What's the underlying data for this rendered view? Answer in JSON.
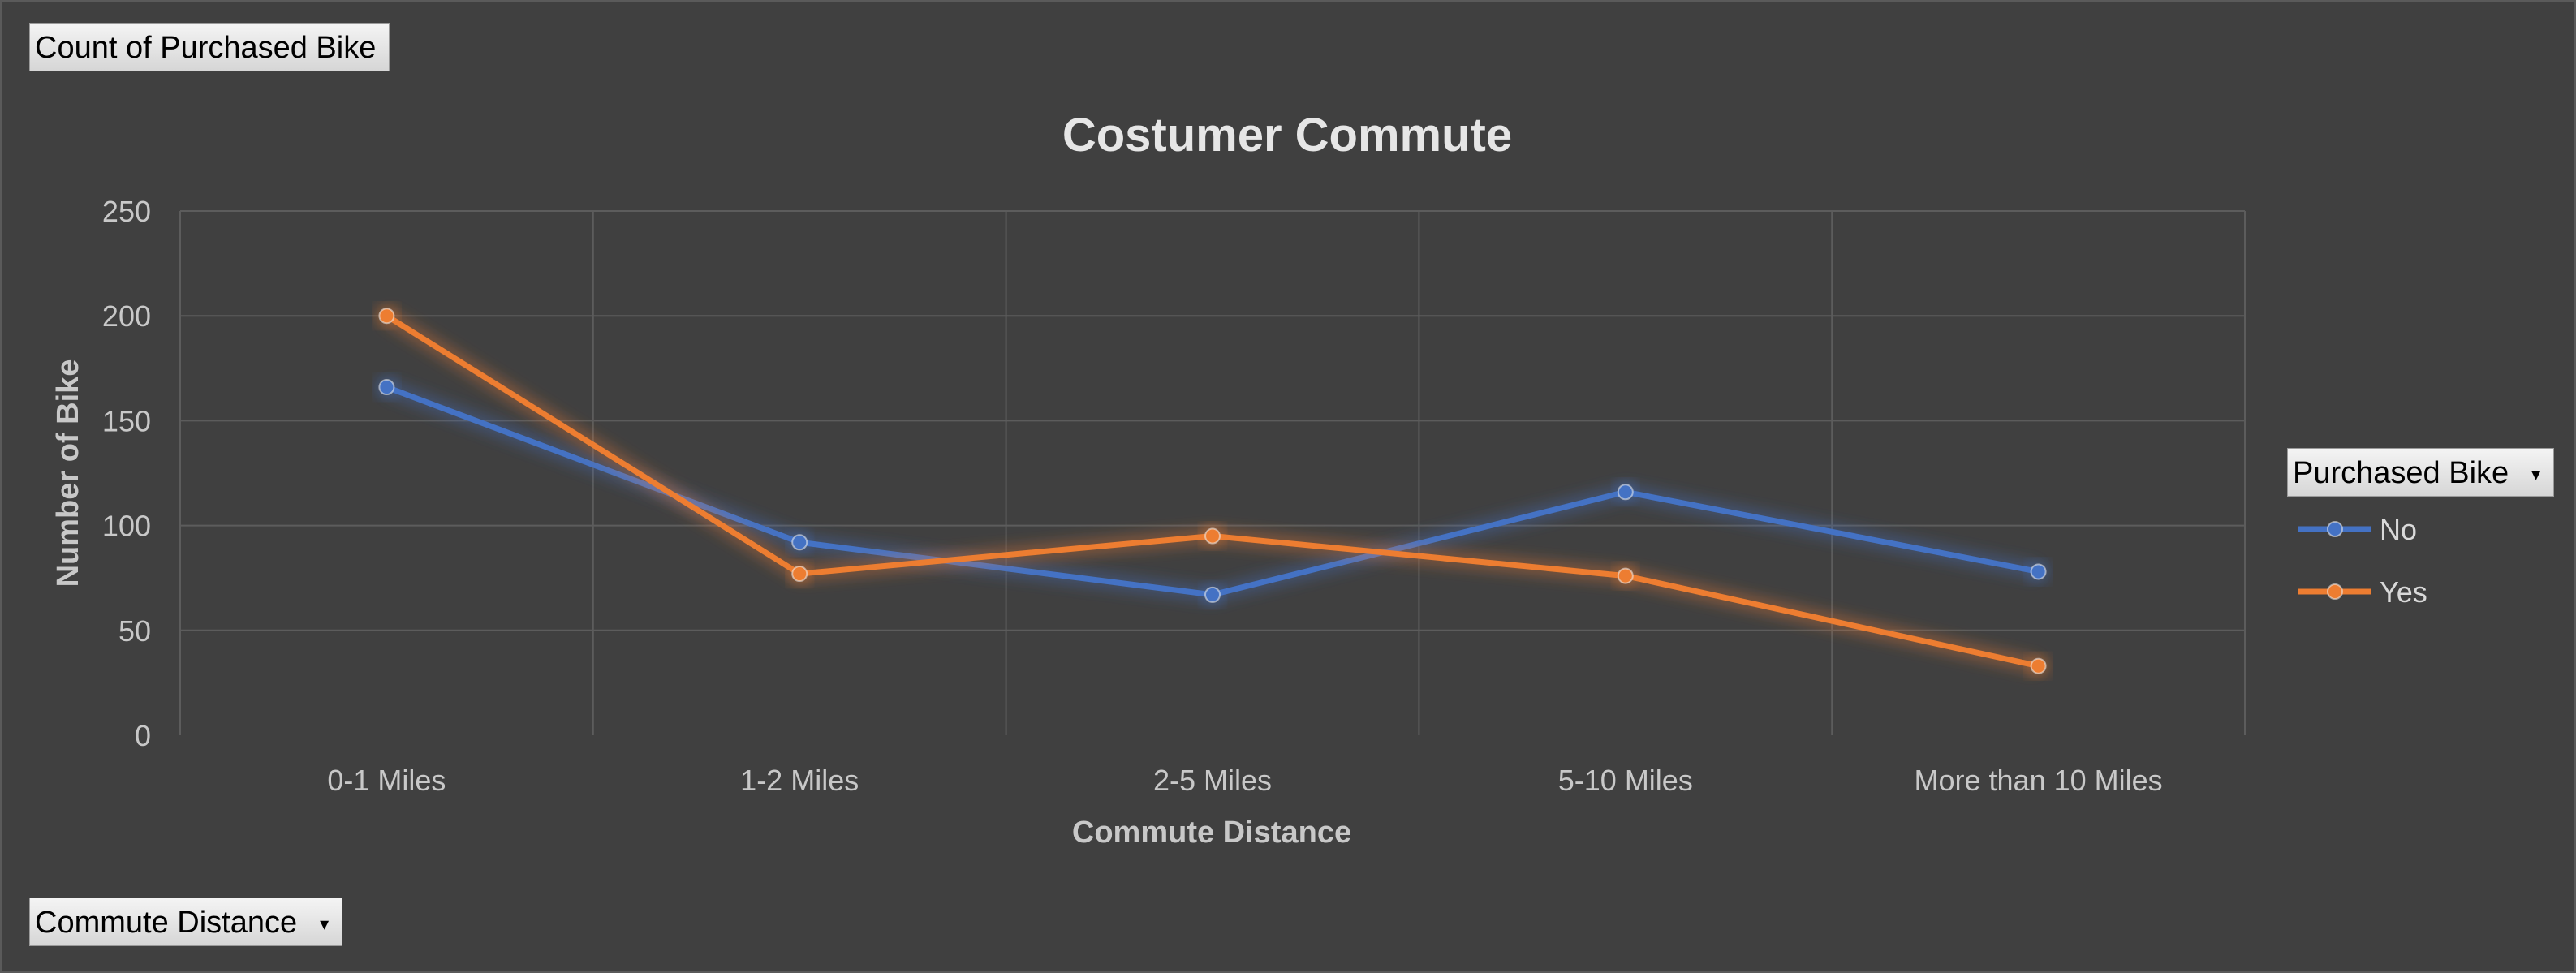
{
  "field_buttons": {
    "values_field": "Count of Purchased Bike",
    "axis_field": "Commute Distance",
    "legend_field": "Purchased Bike"
  },
  "colors": {
    "background": "#404040",
    "gridline": "#5c5c5c",
    "series_no": "#4472C4",
    "series_yes": "#ED7D31"
  },
  "chart_data": {
    "type": "line",
    "title": "Costumer Commute",
    "xlabel": "Commute Distance",
    "ylabel": "Number of Bike",
    "categories": [
      "0-1 Miles",
      "1-2 Miles",
      "2-5 Miles",
      "5-10 Miles",
      "More than 10 Miles"
    ],
    "series": [
      {
        "name": "No",
        "values": [
          166,
          92,
          67,
          116,
          78
        ],
        "color": "#4472C4"
      },
      {
        "name": "Yes",
        "values": [
          200,
          77,
          95,
          76,
          33
        ],
        "color": "#ED7D31"
      }
    ],
    "ylim": [
      0,
      250
    ],
    "yticks": [
      0,
      50,
      100,
      150,
      200,
      250
    ],
    "grid": true,
    "legend_position": "right"
  }
}
